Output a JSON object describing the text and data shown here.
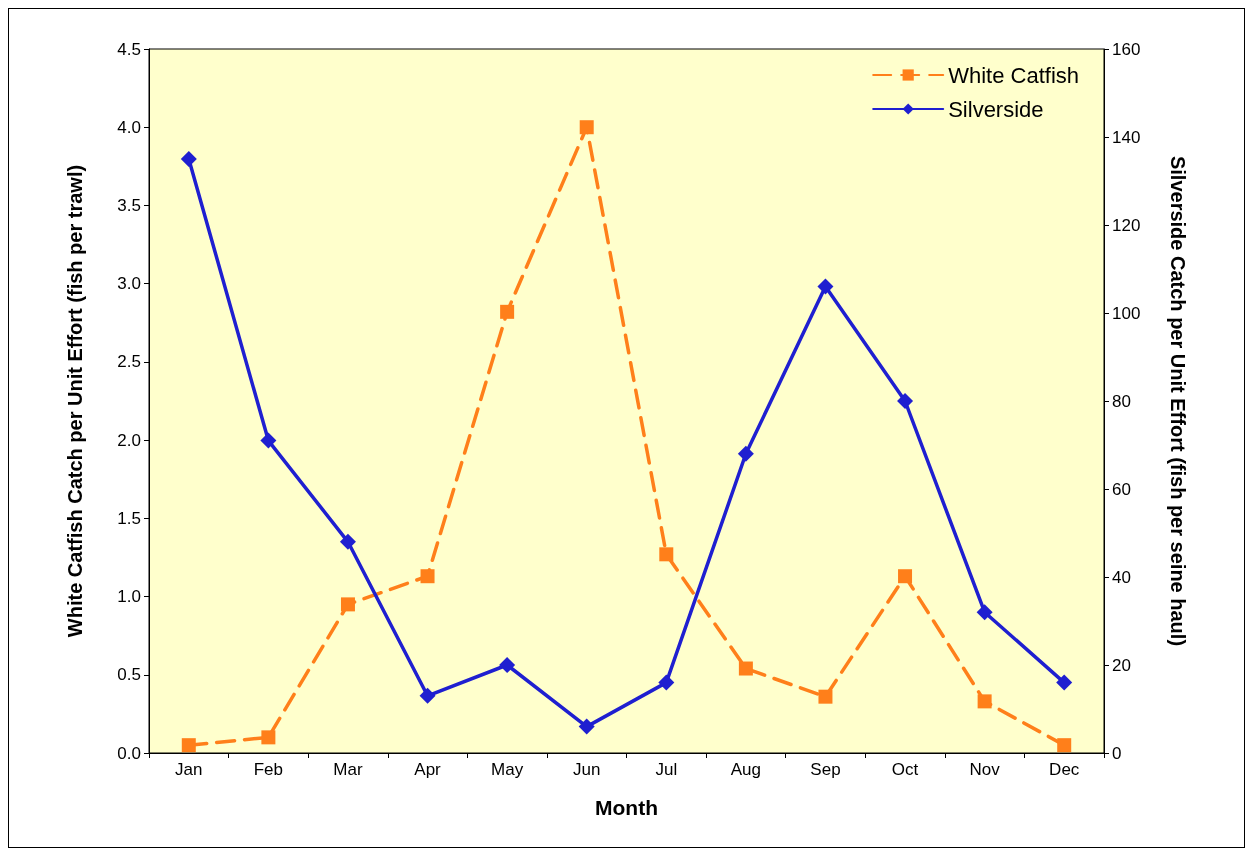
{
  "chart_data": {
    "type": "line",
    "xlabel": "Month",
    "ylabel": "White Catfish Catch per Unit Effort (fish per trawl)",
    "y2label": "Silverside Catch per Unit Effort (fish per seine haul)",
    "categories": [
      "Jan",
      "Feb",
      "Mar",
      "Apr",
      "May",
      "Jun",
      "Jul",
      "Aug",
      "Sep",
      "Oct",
      "Nov",
      "Dec"
    ],
    "series": [
      {
        "name": "White Catfish",
        "color": "#ff7f1a",
        "marker": "square",
        "line_style": "dashed",
        "values": [
          0.05,
          0.1,
          0.95,
          1.13,
          2.82,
          4.0,
          1.27,
          0.54,
          0.36,
          1.13,
          0.33,
          0.05
        ]
      },
      {
        "name": "Silverside",
        "color": "#1f1fd0",
        "marker": "diamond",
        "line_style": "solid",
        "axis": "y2",
        "values": [
          135,
          71,
          48,
          13,
          20,
          6,
          16,
          68,
          106,
          80,
          32,
          16
        ]
      }
    ],
    "ylim": [
      0,
      4.5
    ],
    "yticks": [
      {
        "value": 0,
        "label": "0.0"
      },
      {
        "value": 0.5,
        "label": "0.5"
      },
      {
        "value": 1,
        "label": "1.0"
      },
      {
        "value": 1.5,
        "label": "1.5"
      },
      {
        "value": 2,
        "label": "2.0"
      },
      {
        "value": 2.5,
        "label": "2.5"
      },
      {
        "value": 3,
        "label": "3.0"
      },
      {
        "value": 3.5,
        "label": "3.5"
      },
      {
        "value": 4,
        "label": "4.0"
      },
      {
        "value": 4.5,
        "label": "4.5"
      }
    ],
    "y2lim": [
      0,
      160
    ],
    "y2ticks": [
      0,
      20,
      40,
      60,
      80,
      100,
      120,
      140,
      160
    ],
    "legend": "top right",
    "grid": false
  }
}
